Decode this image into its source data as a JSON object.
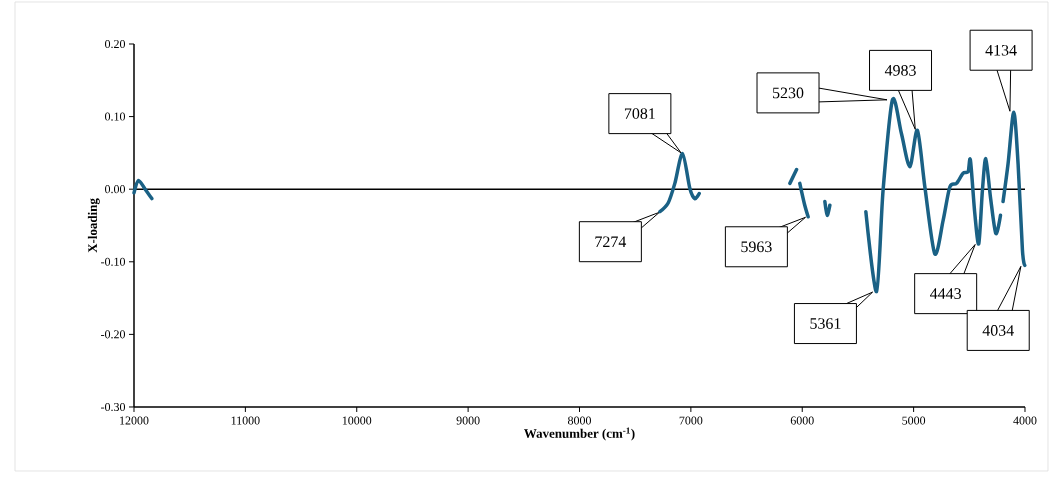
{
  "chart_data": {
    "type": "line",
    "xlabel": "Wavenumber (cm$^{-1}$)",
    "ylabel": "X-loading",
    "xlim": [
      12000,
      4000
    ],
    "ylim": [
      -0.3,
      0.2
    ],
    "xticks": [
      12000,
      11000,
      10000,
      9000,
      8000,
      7000,
      6000,
      5000,
      4000
    ],
    "yticks": [
      {
        "value": 0.2,
        "label": "0.20"
      },
      {
        "value": 0.1,
        "label": "0.10"
      },
      {
        "value": 0,
        "label": "0.00"
      },
      {
        "value": -0.1,
        "label": "-0.10"
      },
      {
        "value": -0.2,
        "label": "-0.20"
      },
      {
        "value": -0.3,
        "label": "-0.30"
      }
    ],
    "ref_lines": [
      {
        "axis": "y",
        "value": 0,
        "color": "#000000"
      }
    ],
    "x": [
      12000,
      11960,
      11900,
      11840,
      null,
      7278,
      7204,
      7144,
      7075,
      7009,
      6964,
      6925,
      null,
      6111,
      6051,
      null,
      6022,
      5981,
      5947,
      null,
      5797,
      5776,
      5752,
      null,
      5429,
      5333,
      5274,
      5190,
      5110,
      5034,
      4966,
      4899,
      4810,
      4735,
      4675,
      4615,
      4556,
      4511,
      4490,
      4451,
      4415,
      4382,
      4352,
      4310,
      4262,
      4220,
      null,
      4197,
      4152,
      4101,
      4062,
      4023,
      4002
    ],
    "series": [
      {
        "color": "#1a6185",
        "values": [
          -0.005,
          0.012,
          0.0,
          -0.013,
          null,
          -0.031,
          -0.019,
          0.008,
          0.049,
          0.001,
          -0.013,
          -0.006,
          null,
          0.008,
          0.027,
          null,
          0.008,
          -0.02,
          -0.038,
          null,
          -0.017,
          -0.036,
          -0.022,
          null,
          -0.031,
          -0.141,
          -0.001,
          0.123,
          0.077,
          0.031,
          0.081,
          0.003,
          -0.089,
          -0.043,
          0.003,
          0.008,
          0.022,
          0.024,
          0.04,
          -0.033,
          -0.075,
          -0.001,
          0.042,
          -0.011,
          -0.061,
          -0.036,
          null,
          -0.017,
          0.035,
          0.106,
          0.035,
          -0.084,
          -0.105
        ]
      }
    ],
    "annotations": [
      {
        "text": "7081",
        "x": 7081,
        "y": 0.049
      },
      {
        "text": "7274",
        "x": 7274,
        "y": -0.031
      },
      {
        "text": "5963",
        "x": 5963,
        "y": -0.038
      },
      {
        "text": "5361",
        "x": 5361,
        "y": -0.141
      },
      {
        "text": "5230",
        "x": 5230,
        "y": 0.123
      },
      {
        "text": "4983",
        "x": 4983,
        "y": 0.081
      },
      {
        "text": "4134",
        "x": 4134,
        "y": 0.106
      },
      {
        "text": "4443",
        "x": 4443,
        "y": -0.075
      },
      {
        "text": "4034",
        "x": 4034,
        "y": -0.105
      }
    ]
  }
}
